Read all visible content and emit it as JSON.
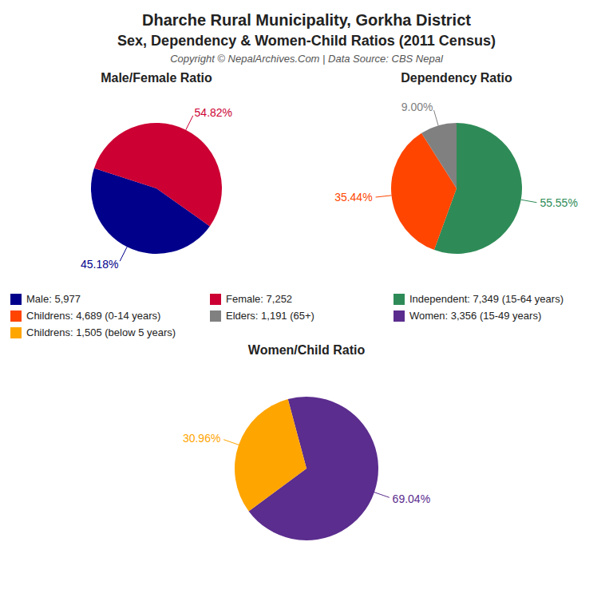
{
  "title": "Dharche Rural Municipality, Gorkha District",
  "subtitle": "Sex, Dependency & Women-Child Ratios (2011 Census)",
  "annotations": [
    "Copyright © NepalArchives.Com | Data Source: CBS Nepal"
  ],
  "legend": "center",
  "chart_data": [
    {
      "type": "pie",
      "title": "Male/Female Ratio",
      "categories": [
        "Male: 5,977",
        "Female: 7,252"
      ],
      "values": [
        45.18,
        54.82
      ],
      "value_labels": [
        "45.18%",
        "54.82%"
      ],
      "colors": [
        "#00008B",
        "#CC0033"
      ],
      "data_labels": true
    },
    {
      "type": "pie",
      "title": "Dependency Ratio",
      "categories": [
        "Independent: 7,349 (15-64 years)",
        "Childrens: 4,689 (0-14 years)",
        "Elders: 1,191 (65+)"
      ],
      "values": [
        55.55,
        35.44,
        9.0
      ],
      "value_labels": [
        "55.55%",
        "35.44%",
        "9.00%"
      ],
      "colors": [
        "#2e8b57",
        "#ff4500",
        "#808080"
      ],
      "data_labels": true
    },
    {
      "type": "pie",
      "title": "Women/Child Ratio",
      "categories": [
        "Women: 3,356 (15-49 years)",
        "Childrens: 1,505 (below 5 years)"
      ],
      "values": [
        69.04,
        30.96
      ],
      "value_labels": [
        "69.04%",
        "30.96%"
      ],
      "colors": [
        "#5b2d8e",
        "#FFA500"
      ],
      "data_labels": true
    }
  ]
}
